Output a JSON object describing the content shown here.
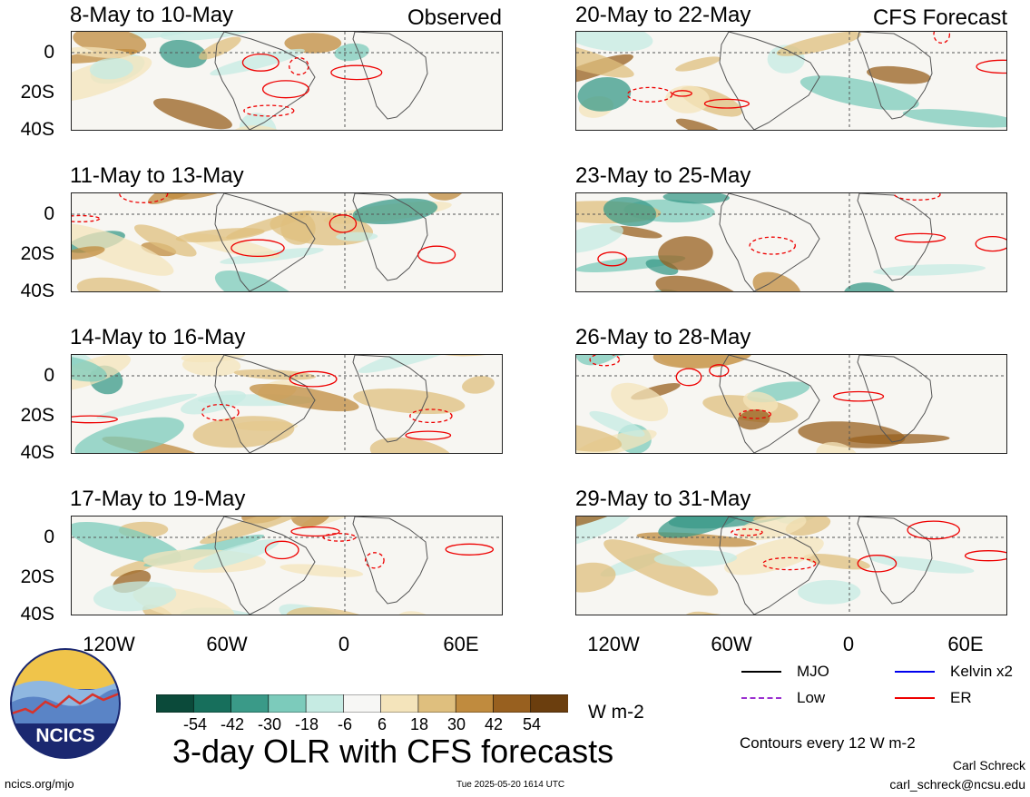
{
  "panels": [
    {
      "title": "8-May to 10-May",
      "tag": "Observed"
    },
    {
      "title": "11-May to 13-May",
      "tag": ""
    },
    {
      "title": "14-May to 16-May",
      "tag": ""
    },
    {
      "title": "17-May to 19-May",
      "tag": ""
    },
    {
      "title": "20-May to 22-May",
      "tag": "CFS Forecast"
    },
    {
      "title": "23-May to 25-May",
      "tag": ""
    },
    {
      "title": "26-May to 28-May",
      "tag": ""
    },
    {
      "title": "29-May to 31-May",
      "tag": ""
    }
  ],
  "y_ticks": [
    "0",
    "20S",
    "40S"
  ],
  "x_ticks": [
    "120W",
    "60W",
    "0",
    "60E"
  ],
  "colorbar": {
    "labels": [
      "-54",
      "-42",
      "-30",
      "-18",
      "-6",
      "6",
      "18",
      "30",
      "42",
      "54"
    ],
    "unit": "W m-2",
    "colors": [
      "#0b4a3a",
      "#176f5c",
      "#3a9a88",
      "#7ccbbb",
      "#c6ebe3",
      "#f7f7f5",
      "#f4e4bb",
      "#dfbf7e",
      "#c08b3e",
      "#98601f",
      "#6b3e0e"
    ]
  },
  "title": "3-day OLR with CFS forecasts",
  "legend": [
    {
      "label": "MJO",
      "color": "#000000"
    },
    {
      "label": "Kelvin x2",
      "color": "#0000ee"
    },
    {
      "label": "Low",
      "color": "#9b30d0"
    },
    {
      "label": "ER",
      "color": "#ee0000"
    }
  ],
  "contour_note": "Contours every 12 W m-2",
  "author": "Carl Schreck",
  "email": "carl_schreck@ncsu.edu",
  "site": "ncics.org/mjo",
  "timestamp": "Tue 2025-05-20 1614 UTC",
  "logo_text": "NCICS"
}
